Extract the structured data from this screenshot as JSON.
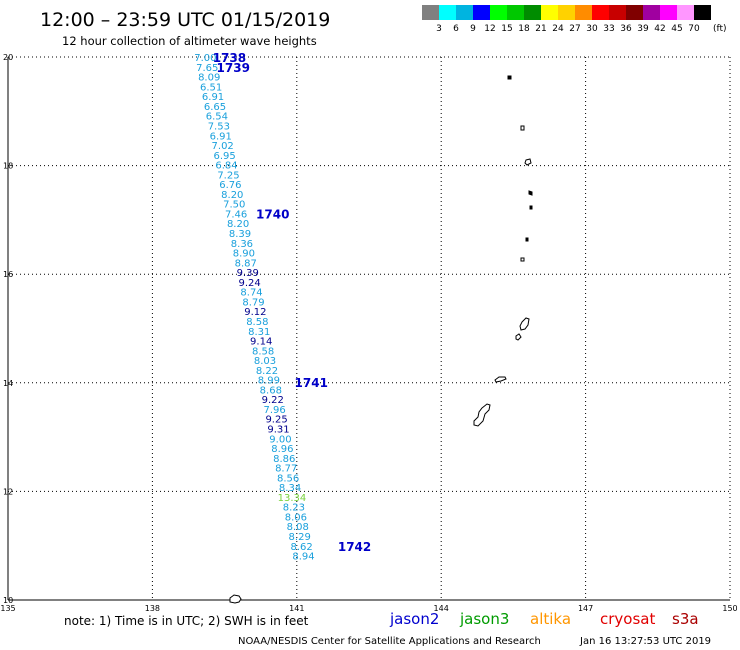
{
  "header": {
    "title": "12:00 – 23:59 UTC 01/15/2019",
    "subtitle": "12 hour collection of altimeter wave heights"
  },
  "legend": {
    "unit": "(ft)",
    "bins": [
      {
        "label": "3",
        "color": "#808080"
      },
      {
        "label": "6",
        "color": "#00ffff"
      },
      {
        "label": "9",
        "color": "#00b4e0"
      },
      {
        "label": "12",
        "color": "#0000ff"
      },
      {
        "label": "15",
        "color": "#00ff00"
      },
      {
        "label": "18",
        "color": "#00c800"
      },
      {
        "label": "21",
        "color": "#008c00"
      },
      {
        "label": "24",
        "color": "#ffff00"
      },
      {
        "label": "27",
        "color": "#ffd200"
      },
      {
        "label": "30",
        "color": "#ff8c00"
      },
      {
        "label": "33",
        "color": "#ff0000"
      },
      {
        "label": "36",
        "color": "#c80000"
      },
      {
        "label": "39",
        "color": "#800000"
      },
      {
        "label": "42",
        "color": "#a000a0"
      },
      {
        "label": "45",
        "color": "#ff00ff"
      },
      {
        "label": "70",
        "color": "#ff96ff"
      },
      {
        "label": "",
        "color": "#000000"
      }
    ]
  },
  "map": {
    "lon_range": [
      135,
      150
    ],
    "lat_range": [
      10,
      20
    ],
    "lon_ticks": [
      "135",
      "138",
      "141",
      "144",
      "147",
      "150"
    ],
    "lat_ticks": [
      "10",
      "12",
      "14",
      "16",
      "18",
      "20"
    ],
    "grid": "dotted"
  },
  "colors": {
    "light": "#1aa0dc",
    "dark": "#00008c",
    "green": "#78d23c",
    "time_label": "#0000c8"
  },
  "chart_data": {
    "type": "scatter",
    "title": "12:00 – 23:59 UTC 01/15/2019",
    "subtitle": "12 hour collection of altimeter wave heights",
    "xlim": [
      135,
      150
    ],
    "ylim": [
      10,
      20
    ],
    "points": [
      {
        "lon": 139.1,
        "lat": 19.98,
        "value": "7.00",
        "shade": "light"
      },
      {
        "lon": 139.14,
        "lat": 19.8,
        "value": "7.65",
        "shade": "light"
      },
      {
        "lon": 139.18,
        "lat": 19.62,
        "value": "8.09",
        "shade": "light"
      },
      {
        "lon": 139.22,
        "lat": 19.44,
        "value": "6.51",
        "shade": "light"
      },
      {
        "lon": 139.26,
        "lat": 19.26,
        "value": "6.91",
        "shade": "light"
      },
      {
        "lon": 139.3,
        "lat": 19.08,
        "value": "6.65",
        "shade": "light"
      },
      {
        "lon": 139.34,
        "lat": 18.9,
        "value": "6.54",
        "shade": "light"
      },
      {
        "lon": 139.38,
        "lat": 18.72,
        "value": "7.53",
        "shade": "light"
      },
      {
        "lon": 139.42,
        "lat": 18.54,
        "value": "6.91",
        "shade": "light"
      },
      {
        "lon": 139.46,
        "lat": 18.36,
        "value": "7.02",
        "shade": "light"
      },
      {
        "lon": 139.5,
        "lat": 18.18,
        "value": "6.95",
        "shade": "light"
      },
      {
        "lon": 139.54,
        "lat": 18.0,
        "value": "6.84",
        "shade": "light"
      },
      {
        "lon": 139.58,
        "lat": 17.82,
        "value": "7.25",
        "shade": "light"
      },
      {
        "lon": 139.62,
        "lat": 17.64,
        "value": "6.76",
        "shade": "light"
      },
      {
        "lon": 139.66,
        "lat": 17.46,
        "value": "8.20",
        "shade": "light"
      },
      {
        "lon": 139.7,
        "lat": 17.28,
        "value": "7.50",
        "shade": "light"
      },
      {
        "lon": 139.74,
        "lat": 17.1,
        "value": "7.46",
        "shade": "light"
      },
      {
        "lon": 139.78,
        "lat": 16.92,
        "value": "8.20",
        "shade": "light"
      },
      {
        "lon": 139.82,
        "lat": 16.74,
        "value": "8.39",
        "shade": "light"
      },
      {
        "lon": 139.86,
        "lat": 16.56,
        "value": "8.36",
        "shade": "light"
      },
      {
        "lon": 139.9,
        "lat": 16.38,
        "value": "8.90",
        "shade": "light"
      },
      {
        "lon": 139.94,
        "lat": 16.2,
        "value": "8.87",
        "shade": "light"
      },
      {
        "lon": 139.98,
        "lat": 16.02,
        "value": "9.39",
        "shade": "dark"
      },
      {
        "lon": 140.02,
        "lat": 15.84,
        "value": "9.24",
        "shade": "dark"
      },
      {
        "lon": 140.06,
        "lat": 15.66,
        "value": "8.74",
        "shade": "light"
      },
      {
        "lon": 140.1,
        "lat": 15.48,
        "value": "8.79",
        "shade": "light"
      },
      {
        "lon": 140.14,
        "lat": 15.3,
        "value": "9.12",
        "shade": "dark"
      },
      {
        "lon": 140.18,
        "lat": 15.12,
        "value": "8.58",
        "shade": "light"
      },
      {
        "lon": 140.22,
        "lat": 14.94,
        "value": "8.31",
        "shade": "light"
      },
      {
        "lon": 140.26,
        "lat": 14.76,
        "value": "9.14",
        "shade": "dark"
      },
      {
        "lon": 140.3,
        "lat": 14.58,
        "value": "8.58",
        "shade": "light"
      },
      {
        "lon": 140.34,
        "lat": 14.4,
        "value": "8.03",
        "shade": "light"
      },
      {
        "lon": 140.38,
        "lat": 14.22,
        "value": "8.22",
        "shade": "light"
      },
      {
        "lon": 140.42,
        "lat": 14.04,
        "value": "8.99",
        "shade": "light"
      },
      {
        "lon": 140.46,
        "lat": 13.86,
        "value": "8.68",
        "shade": "light"
      },
      {
        "lon": 140.5,
        "lat": 13.68,
        "value": "9.22",
        "shade": "dark"
      },
      {
        "lon": 140.54,
        "lat": 13.5,
        "value": "7.96",
        "shade": "light"
      },
      {
        "lon": 140.58,
        "lat": 13.32,
        "value": "9.25",
        "shade": "dark"
      },
      {
        "lon": 140.62,
        "lat": 13.14,
        "value": "9.31",
        "shade": "dark"
      },
      {
        "lon": 140.66,
        "lat": 12.96,
        "value": "9.00",
        "shade": "light"
      },
      {
        "lon": 140.7,
        "lat": 12.78,
        "value": "8.96",
        "shade": "light"
      },
      {
        "lon": 140.74,
        "lat": 12.6,
        "value": "8.86",
        "shade": "light"
      },
      {
        "lon": 140.78,
        "lat": 12.42,
        "value": "8.77",
        "shade": "light"
      },
      {
        "lon": 140.82,
        "lat": 12.24,
        "value": "8.56",
        "shade": "light"
      },
      {
        "lon": 140.86,
        "lat": 12.06,
        "value": "8.34",
        "shade": "light"
      },
      {
        "lon": 140.9,
        "lat": 11.88,
        "value": "13.34",
        "shade": "green"
      },
      {
        "lon": 140.94,
        "lat": 11.7,
        "value": "8.23",
        "shade": "light"
      },
      {
        "lon": 140.98,
        "lat": 11.52,
        "value": "8.06",
        "shade": "light"
      },
      {
        "lon": 141.02,
        "lat": 11.34,
        "value": "8.08",
        "shade": "light"
      },
      {
        "lon": 141.06,
        "lat": 11.16,
        "value": "8.29",
        "shade": "light"
      },
      {
        "lon": 141.1,
        "lat": 10.98,
        "value": "8.62",
        "shade": "light"
      },
      {
        "lon": 141.14,
        "lat": 10.8,
        "value": "8.94",
        "shade": "light"
      }
    ],
    "time_labels": [
      {
        "label": "1738",
        "lon": 139.6,
        "lat": 19.98
      },
      {
        "label": "1739",
        "lon": 139.68,
        "lat": 19.8
      },
      {
        "label": "1740",
        "lon": 140.5,
        "lat": 17.1
      },
      {
        "label": "1741",
        "lon": 141.3,
        "lat": 14.0
      },
      {
        "label": "1742",
        "lon": 142.2,
        "lat": 10.98
      }
    ]
  },
  "footer": {
    "note": "note:  1) Time is in UTC;  2) SWH is in feet",
    "credit": "NOAA/NESDIS Center for Satellite Applications and Research",
    "timestamp": "Jan 16 13:27:53 UTC 2019",
    "satellites": [
      {
        "name": "jason2",
        "color": "#0000cd"
      },
      {
        "name": "jason3",
        "color": "#009b00"
      },
      {
        "name": "altika",
        "color": "#ff9600"
      },
      {
        "name": "cryosat",
        "color": "#e10000"
      },
      {
        "name": "s3a",
        "color": "#aa0000"
      }
    ]
  }
}
